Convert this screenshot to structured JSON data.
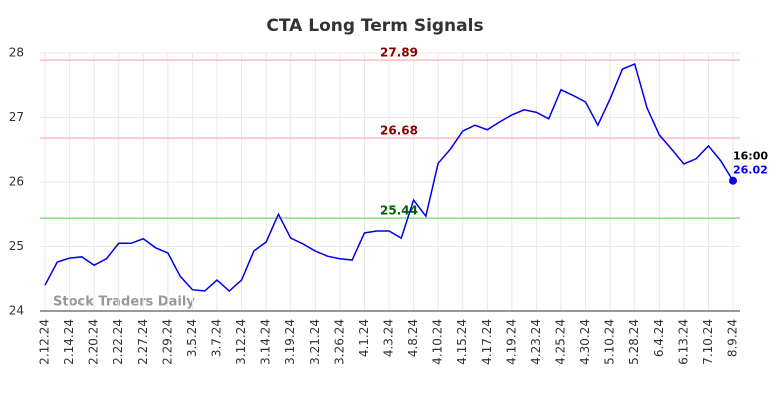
{
  "chart_data": {
    "type": "line",
    "title": "CTA Long Term Signals",
    "watermark": "Stock Traders Daily",
    "categories": [
      "2.12.24",
      null,
      "2.14.24",
      null,
      "2.20.24",
      null,
      "2.22.24",
      null,
      "2.27.24",
      null,
      "2.29.24",
      null,
      "3.5.24",
      null,
      "3.7.24",
      null,
      "3.12.24",
      null,
      "3.14.24",
      null,
      "3.19.24",
      null,
      "3.21.24",
      null,
      "3.26.24",
      null,
      "4.1.24",
      null,
      "4.3.24",
      null,
      "4.8.24",
      null,
      "4.10.24",
      null,
      "4.15.24",
      null,
      "4.17.24",
      null,
      "4.19.24",
      null,
      "4.23.24",
      null,
      "4.25.24",
      null,
      "4.30.24",
      null,
      "5.10.24",
      null,
      "5.28.24",
      null,
      "6.4.24",
      null,
      "6.13.24",
      null,
      "7.10.24",
      null,
      "8.9.24"
    ],
    "series": [
      {
        "color": "#0000ee",
        "values": [
          24.4,
          24.76,
          24.82,
          24.84,
          24.71,
          24.81,
          25.05,
          25.05,
          25.12,
          24.98,
          24.9,
          24.54,
          24.33,
          24.31,
          24.48,
          24.31,
          24.48,
          24.93,
          25.07,
          25.5,
          25.13,
          25.04,
          24.93,
          24.85,
          24.81,
          24.79,
          25.21,
          25.24,
          25.24,
          25.13,
          25.72,
          25.47,
          26.29,
          26.51,
          26.79,
          26.88,
          26.81,
          26.93,
          27.04,
          27.12,
          27.08,
          26.98,
          27.43,
          27.34,
          27.24,
          26.88,
          27.29,
          27.75,
          27.83,
          27.15,
          26.73,
          26.51,
          26.28,
          26.36,
          26.56,
          26.33,
          26.02
        ]
      }
    ],
    "hlines": [
      {
        "value": 27.89,
        "color": "#ffbbbb",
        "label_color": "#8b0000"
      },
      {
        "value": 26.68,
        "color": "#ffbbbb",
        "label_color": "#8b0000"
      },
      {
        "value": 25.44,
        "color": "#88dd88",
        "label_color": "#006400"
      }
    ],
    "last_time": "16:00",
    "ylim": [
      24,
      28
    ],
    "yticks": [
      24,
      25,
      26,
      27,
      28
    ],
    "grid": true
  }
}
